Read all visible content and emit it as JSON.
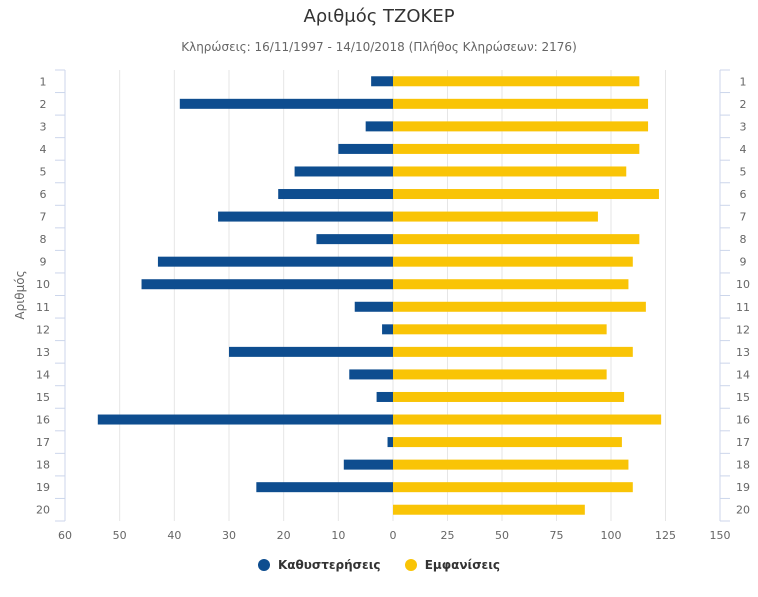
{
  "chart_data": {
    "type": "bar",
    "orientation": "horizontal",
    "title": "Αριθμός ΤΖΟΚΕΡ",
    "subtitle": "Κληρώσεις: 16/11/1997 - 14/10/2018 (Πλήθος Κληρώσεων: 2176)",
    "ylabel": "Αριθμός",
    "categories": [
      "1",
      "2",
      "3",
      "4",
      "5",
      "6",
      "7",
      "8",
      "9",
      "10",
      "11",
      "12",
      "13",
      "14",
      "15",
      "16",
      "17",
      "18",
      "19",
      "20"
    ],
    "left_axis": {
      "min": 0,
      "max": 60,
      "reversed": true,
      "ticks": [
        60,
        50,
        40,
        30,
        20,
        10,
        0
      ]
    },
    "right_axis": {
      "min": 0,
      "max": 150,
      "ticks": [
        25,
        50,
        75,
        100,
        125,
        150
      ]
    },
    "series": [
      {
        "name": "Καθυστερήσεις",
        "color": "#0e4d8f",
        "axis": "left",
        "values": [
          4,
          39,
          5,
          10,
          18,
          21,
          32,
          14,
          43,
          46,
          7,
          2,
          30,
          8,
          3,
          54,
          1,
          9,
          25,
          0
        ]
      },
      {
        "name": "Εμφανίσεις",
        "color": "#f9c406",
        "axis": "right",
        "values": [
          113,
          117,
          117,
          113,
          107,
          122,
          94,
          113,
          110,
          108,
          116,
          98,
          110,
          98,
          106,
          123,
          105,
          108,
          110,
          88
        ]
      }
    ],
    "legend_position": "bottom-center"
  }
}
